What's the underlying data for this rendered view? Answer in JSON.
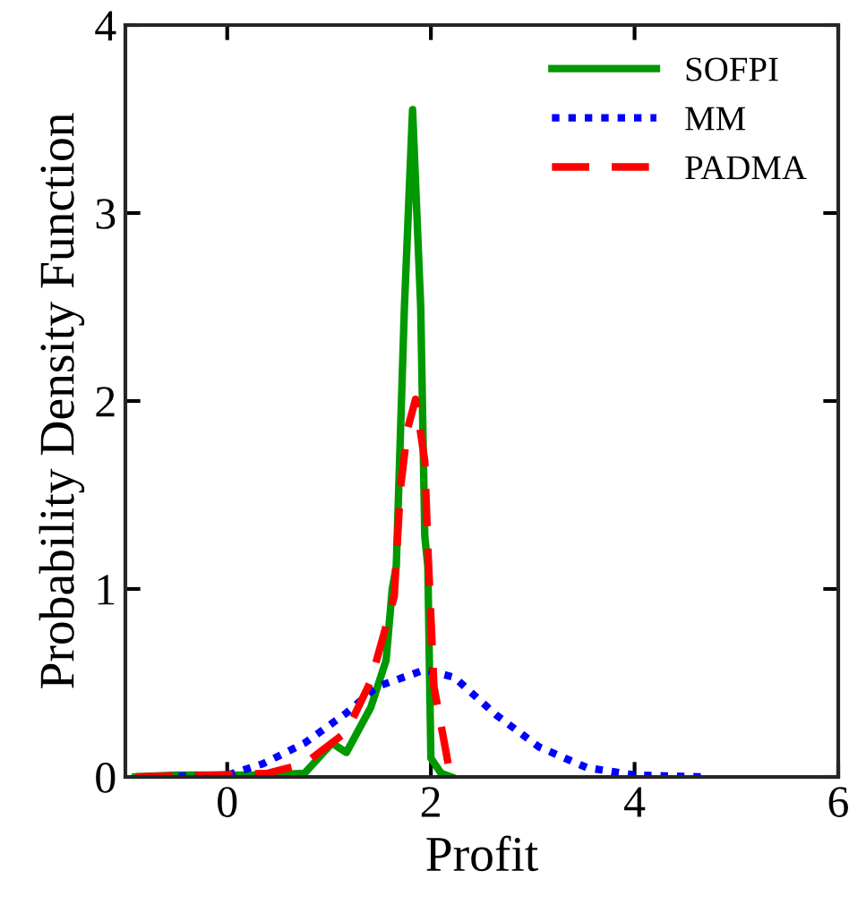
{
  "chart_data": {
    "type": "line",
    "xlabel": "Profit",
    "ylabel": "Probability Density Function",
    "xlim": [
      -1,
      6
    ],
    "ylim": [
      0,
      4
    ],
    "xticks": [
      0,
      2,
      4,
      6
    ],
    "yticks": [
      0,
      1,
      2,
      3,
      4
    ],
    "grid": false,
    "legend": "top right",
    "series": [
      {
        "name": "SOFPI",
        "color": "#009900",
        "line_style": "solid",
        "x": [
          -0.9,
          -0.5,
          0.0,
          0.4,
          0.76,
          1.03,
          1.17,
          1.41,
          1.56,
          1.62,
          1.66,
          1.74,
          1.82,
          1.9,
          1.94,
          1.97,
          2.0,
          2.1,
          2.2
        ],
        "values": [
          0.0,
          0.01,
          0.01,
          0.01,
          0.02,
          0.18,
          0.13,
          0.37,
          0.62,
          1.0,
          1.12,
          2.5,
          3.55,
          2.5,
          1.28,
          1.12,
          0.1,
          0.02,
          0.0
        ]
      },
      {
        "name": "MM",
        "color": "#0000ff",
        "line_style": "dotted",
        "x": [
          -0.8,
          0.0,
          0.35,
          0.76,
          1.17,
          1.47,
          1.94,
          2.23,
          2.64,
          3.06,
          3.53,
          4.0,
          4.7
        ],
        "values": [
          0.0,
          0.01,
          0.07,
          0.18,
          0.34,
          0.48,
          0.57,
          0.53,
          0.33,
          0.16,
          0.05,
          0.01,
          0.0
        ]
      },
      {
        "name": "PADMA",
        "color": "#ff0000",
        "line_style": "dashed",
        "x": [
          -0.9,
          -0.1,
          0.4,
          0.76,
          1.17,
          1.41,
          1.64,
          1.7,
          1.77,
          1.85,
          1.94,
          1.97,
          2.03,
          2.17,
          2.2
        ],
        "values": [
          0.0,
          0.01,
          0.02,
          0.07,
          0.24,
          0.51,
          0.96,
          1.53,
          1.85,
          2.01,
          1.68,
          1.22,
          0.48,
          0.07,
          0.0
        ]
      }
    ]
  }
}
